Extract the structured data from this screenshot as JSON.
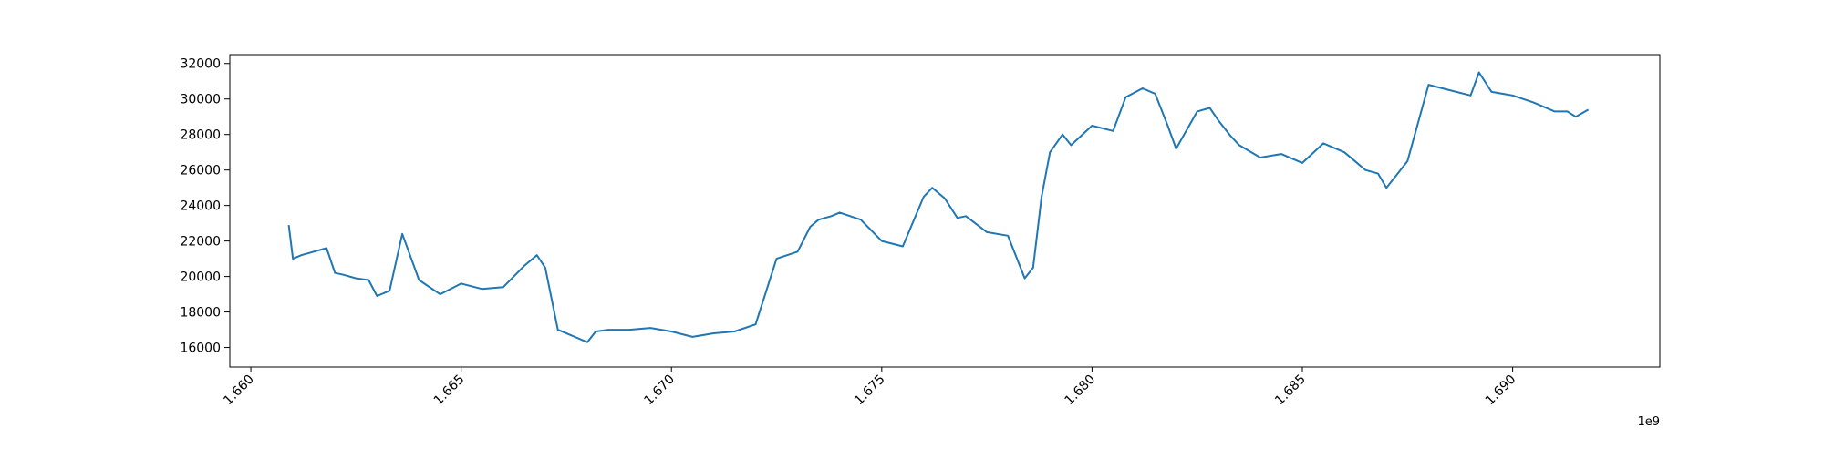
{
  "chart_data": {
    "type": "line",
    "title": "",
    "xlabel": "",
    "ylabel": "",
    "x_offset_label": "1e9",
    "xlim": [
      1.6595,
      1.6935
    ],
    "ylim": [
      14900,
      32500
    ],
    "x_ticks": [
      {
        "value": 1.66,
        "label": "1.660"
      },
      {
        "value": 1.665,
        "label": "1.665"
      },
      {
        "value": 1.67,
        "label": "1.670"
      },
      {
        "value": 1.675,
        "label": "1.675"
      },
      {
        "value": 1.68,
        "label": "1.680"
      },
      {
        "value": 1.685,
        "label": "1.685"
      },
      {
        "value": 1.69,
        "label": "1.690"
      }
    ],
    "y_ticks": [
      {
        "value": 16000,
        "label": "16000"
      },
      {
        "value": 18000,
        "label": "18000"
      },
      {
        "value": 20000,
        "label": "20000"
      },
      {
        "value": 22000,
        "label": "22000"
      },
      {
        "value": 24000,
        "label": "24000"
      },
      {
        "value": 26000,
        "label": "26000"
      },
      {
        "value": 28000,
        "label": "28000"
      },
      {
        "value": 30000,
        "label": "30000"
      },
      {
        "value": 32000,
        "label": "32000"
      }
    ],
    "grid": false,
    "legend": "none",
    "line_color": "#1f77b4",
    "series": [
      {
        "x": [
          1.6609,
          1.661,
          1.6612,
          1.6615,
          1.6618,
          1.662,
          1.6622,
          1.6625,
          1.6628,
          1.663,
          1.6633,
          1.6636,
          1.664,
          1.6645,
          1.665,
          1.6655,
          1.666,
          1.6665,
          1.6668,
          1.667,
          1.6673,
          1.6676,
          1.6679,
          1.668,
          1.6682,
          1.6685,
          1.669,
          1.6695,
          1.67,
          1.6705,
          1.671,
          1.6715,
          1.672,
          1.6725,
          1.673,
          1.6733,
          1.6735,
          1.6738,
          1.674,
          1.6745,
          1.675,
          1.6755,
          1.676,
          1.6762,
          1.6765,
          1.6768,
          1.677,
          1.6775,
          1.678,
          1.6784,
          1.6786,
          1.6788,
          1.679,
          1.6793,
          1.6795,
          1.68,
          1.6805,
          1.6808,
          1.6812,
          1.6815,
          1.6818,
          1.682,
          1.6825,
          1.6828,
          1.683,
          1.6833,
          1.6835,
          1.684,
          1.6845,
          1.685,
          1.6855,
          1.686,
          1.6865,
          1.6868,
          1.687,
          1.6872,
          1.6875,
          1.688,
          1.6885,
          1.689,
          1.6892,
          1.6895,
          1.69,
          1.6905,
          1.691,
          1.6913,
          1.6915,
          1.6918
        ],
        "y": [
          22900,
          21000,
          21200,
          21400,
          21600,
          20200,
          20100,
          19900,
          19800,
          18900,
          19200,
          22400,
          19800,
          19000,
          19600,
          19300,
          19400,
          20600,
          21200,
          20500,
          17000,
          16700,
          16400,
          16300,
          16900,
          17000,
          17000,
          17100,
          16900,
          16600,
          16800,
          16900,
          17300,
          21000,
          21400,
          22800,
          23200,
          23400,
          23600,
          23200,
          22000,
          21700,
          24500,
          25000,
          24400,
          23300,
          23400,
          22500,
          22300,
          19900,
          20500,
          24500,
          27000,
          28000,
          27400,
          28500,
          28200,
          30100,
          30600,
          30300,
          28500,
          27200,
          29300,
          29500,
          28800,
          27900,
          27400,
          26700,
          26900,
          26400,
          27500,
          27000,
          26000,
          25800,
          25000,
          25600,
          26500,
          30800,
          30500,
          30200,
          31500,
          30400,
          30200,
          29800,
          29300,
          29300,
          29000,
          29400
        ]
      }
    ]
  }
}
